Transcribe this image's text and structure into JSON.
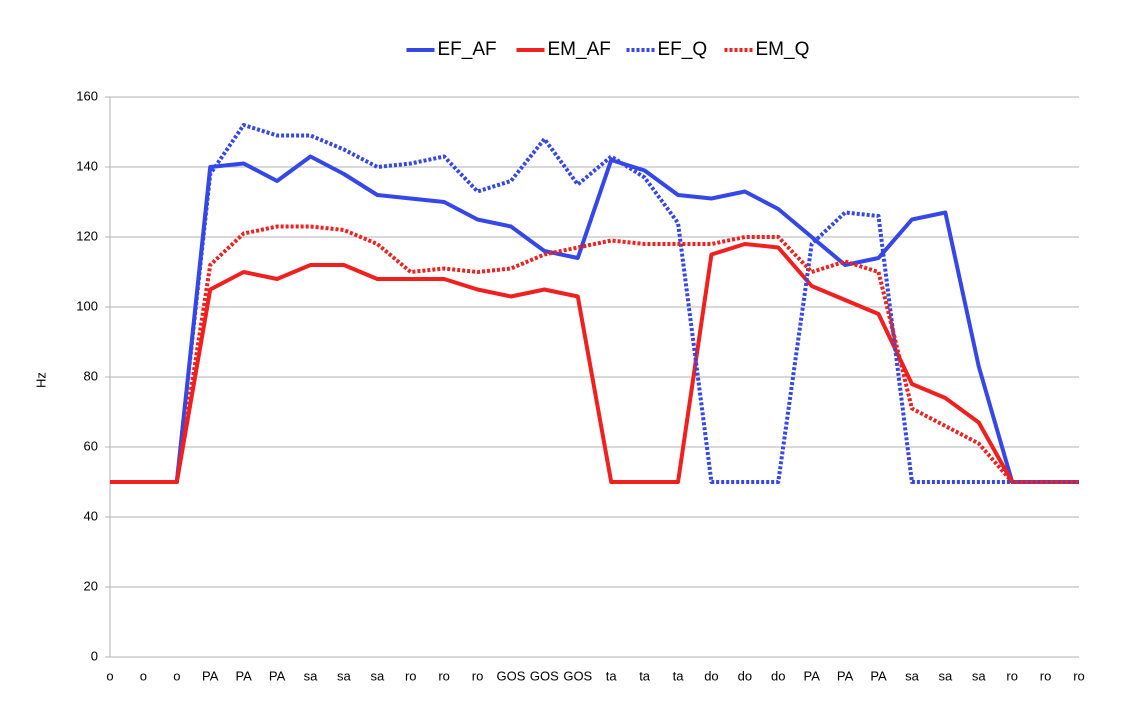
{
  "chart_data": {
    "type": "line",
    "y_label": "Hz",
    "categories": [
      "o",
      "o",
      "o",
      "PA",
      "PA",
      "PA",
      "sa",
      "sa",
      "sa",
      "ro",
      "ro",
      "ro",
      "GOS",
      "GOS",
      "GOS",
      "ta",
      "ta",
      "ta",
      "do",
      "do",
      "do",
      "PA",
      "PA",
      "PA",
      "sa",
      "sa",
      "sa",
      "ro",
      "ro",
      "ro"
    ],
    "series": [
      {
        "name": "EF_AF",
        "color": "#3547e6",
        "style": "solid",
        "values": [
          50,
          50,
          50,
          140,
          141,
          136,
          143,
          138,
          132,
          131,
          130,
          125,
          123,
          116,
          114,
          142,
          139,
          132,
          131,
          133,
          128,
          120,
          112,
          114,
          125,
          127,
          83,
          50,
          50,
          50
        ]
      },
      {
        "name": "EM_AF",
        "color": "#f0201f",
        "style": "solid",
        "values": [
          50,
          50,
          50,
          105,
          110,
          108,
          112,
          112,
          108,
          108,
          108,
          105,
          103,
          105,
          103,
          50,
          50,
          50,
          115,
          118,
          117,
          106,
          102,
          98,
          78,
          74,
          67,
          50,
          50,
          50
        ]
      },
      {
        "name": "EF_Q",
        "color": "#3547e6",
        "style": "dotted",
        "values": [
          50,
          50,
          50,
          138,
          152,
          149,
          149,
          145,
          140,
          141,
          143,
          133,
          136,
          148,
          135,
          143,
          137,
          124,
          50,
          50,
          50,
          118,
          127,
          126,
          50,
          50,
          50,
          50,
          50,
          50
        ]
      },
      {
        "name": "EM_Q",
        "color": "#f0201f",
        "style": "dotted",
        "values": [
          50,
          50,
          50,
          112,
          121,
          123,
          123,
          122,
          118,
          110,
          111,
          110,
          111,
          115,
          117,
          119,
          118,
          118,
          118,
          120,
          120,
          110,
          113,
          110,
          71,
          66,
          61,
          50,
          50,
          50
        ]
      }
    ],
    "ylim": [
      0,
      160
    ],
    "yticks": [
      0,
      20,
      40,
      60,
      80,
      100,
      120,
      140,
      160
    ],
    "grid": true,
    "legend": "top"
  }
}
